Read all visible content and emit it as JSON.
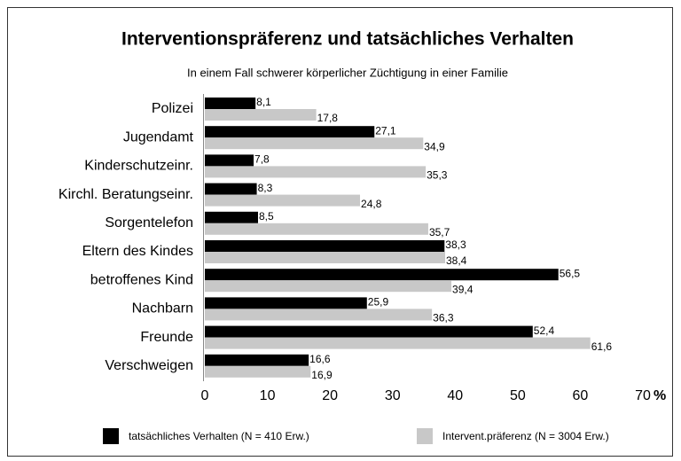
{
  "chart_data": {
    "type": "bar",
    "orientation": "horizontal",
    "title": "Interventionspräferenz und tatsächliches Verhalten",
    "subtitle": "In einem  Fall schwerer körperlicher Züchtigung in einer Familie",
    "categories": [
      "Polizei",
      "Jugendamt",
      "Kinderschutzeinr.",
      "Kirchl. Beratungseinr.",
      "Sorgentelefon",
      "Eltern des Kindes",
      "betroffenes Kind",
      "Nachbarn",
      "Freunde",
      "Verschweigen"
    ],
    "series": [
      {
        "name": "tatsächliches Verhalten (N = 410 Erw.)",
        "color": "#000000",
        "values": [
          8.1,
          27.1,
          7.8,
          8.3,
          8.5,
          38.3,
          56.5,
          25.9,
          52.4,
          16.6
        ],
        "value_labels": [
          "8,1",
          "27,1",
          "7,8",
          "8,3",
          "8,5",
          "38,3",
          "56,5",
          "25,9",
          "52,4",
          "16,6"
        ]
      },
      {
        "name": "Intervent.präferenz (N = 3004 Erw.)",
        "color": "#c8c8c8",
        "values": [
          17.8,
          34.9,
          35.3,
          24.8,
          35.7,
          38.4,
          39.4,
          36.3,
          61.6,
          16.9
        ],
        "value_labels": [
          "17,8",
          "34,9",
          "35,3",
          "24,8",
          "35,7",
          "38,4",
          "39,4",
          "36,3",
          "61,6",
          "16,9"
        ]
      }
    ],
    "xlim": [
      0,
      70
    ],
    "xticks": [
      0,
      10,
      20,
      30,
      40,
      50,
      60,
      70
    ],
    "x_unit": "%"
  }
}
